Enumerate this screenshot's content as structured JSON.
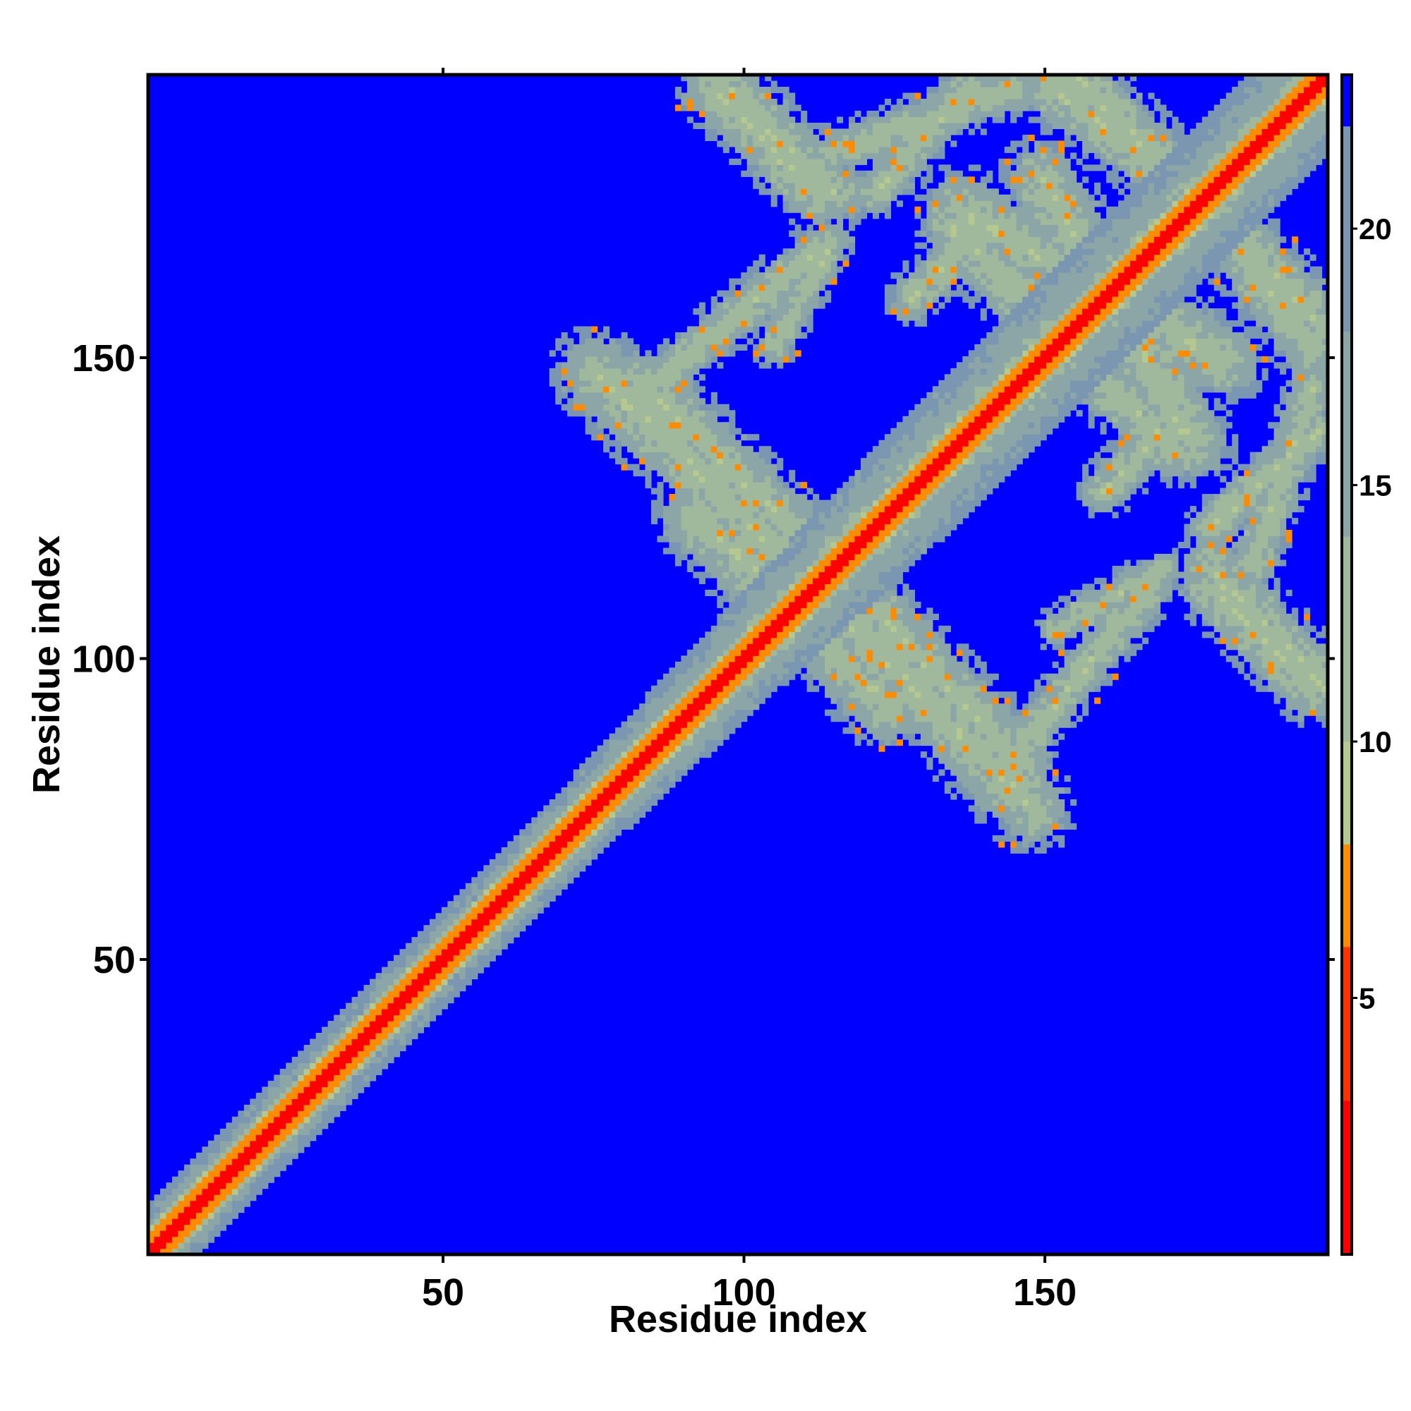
{
  "chart_data": {
    "type": "heatmap",
    "title": "",
    "xlabel": "Residue index",
    "ylabel": "Residue index",
    "n_residues": 197,
    "xlim": [
      1,
      197
    ],
    "ylim": [
      1,
      197
    ],
    "x_ticks": [
      50,
      100,
      150
    ],
    "y_ticks": [
      50,
      100,
      150
    ],
    "grid": false,
    "legend": "colorbar-right",
    "colorbar": {
      "range": [
        0,
        23
      ],
      "ticks": [
        5,
        10,
        15,
        20
      ],
      "bands": [
        {
          "from": 0,
          "to": 3,
          "color": "#ff0000"
        },
        {
          "from": 3,
          "to": 6,
          "color": "#ff3300"
        },
        {
          "from": 6,
          "to": 8,
          "color": "#ff8c00"
        },
        {
          "from": 8,
          "to": 10,
          "color": "#b4c890"
        },
        {
          "from": 10,
          "to": 14,
          "color": "#a0b89c"
        },
        {
          "from": 14,
          "to": 18,
          "color": "#8ca6a8"
        },
        {
          "from": 18,
          "to": 22,
          "color": "#7a96b0"
        },
        {
          "from": 22,
          "to": 23,
          "color": "#0000ff"
        }
      ]
    },
    "background_color": "#0000ff",
    "diagonal_band": {
      "core_halfwidth": 1.2,
      "orange_halfwidth": 3.0,
      "halo_halfwidth_near": 8,
      "halo_halfwidth_far": 13
    },
    "contact_blocks": [
      {
        "name": "antidiagonal-1",
        "x": [
          92,
          124
        ],
        "y": [
          124,
          92
        ],
        "halfwidth": 8
      },
      {
        "name": "antidiagonal-2",
        "x": [
          75,
          112
        ],
        "y": [
          148,
          112
        ],
        "halfwidth": 8
      },
      {
        "name": "antidiagonal-3",
        "x": [
          120,
          146
        ],
        "y": [
          110,
          83
        ],
        "halfwidth": 7
      },
      {
        "name": "antidiagonal-4",
        "x": [
          95,
          112
        ],
        "y": [
          195,
          178
        ],
        "halfwidth": 7
      },
      {
        "name": "antidiagonal-5",
        "x": [
          136,
          180
        ],
        "y": [
          175,
          150
        ],
        "halfwidth": 8
      },
      {
        "name": "antidiagonal-6",
        "x": [
          153,
          172
        ],
        "y": [
          153,
          135
        ],
        "halfwidth": 7
      },
      {
        "name": "antidiagonal-7",
        "x": [
          152,
          172
        ],
        "y": [
          195,
          180
        ],
        "halfwidth": 7
      },
      {
        "name": "antidiagonal-8",
        "x": [
          178,
          197
        ],
        "y": [
          175,
          155
        ],
        "halfwidth": 7
      },
      {
        "name": "antidiagonal-9",
        "x": [
          178,
          197
        ],
        "y": [
          115,
          95
        ],
        "halfwidth": 7
      },
      {
        "name": "patch-1",
        "x": [
          80,
          112
        ],
        "y": [
          142,
          168
        ],
        "halfwidth": 5
      },
      {
        "name": "patch-2",
        "x": [
          116,
          145
        ],
        "y": [
          185,
          195
        ],
        "halfwidth": 5
      },
      {
        "name": "patch-3",
        "x": [
          152,
          170
        ],
        "y": [
          105,
          115
        ],
        "halfwidth": 4
      },
      {
        "name": "patch-4",
        "x": [
          178,
          196
        ],
        "y": [
          122,
          138
        ],
        "halfwidth": 5
      },
      {
        "name": "patch-5",
        "x": [
          128,
          140
        ],
        "y": [
          160,
          172
        ],
        "halfwidth": 5
      }
    ]
  }
}
